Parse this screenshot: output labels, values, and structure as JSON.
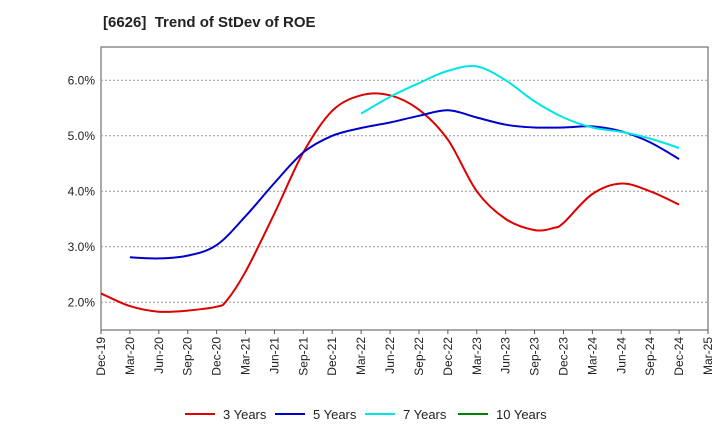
{
  "chart_data": {
    "type": "line",
    "title": "[6626]  Trend of StDev of ROE",
    "xlabel": "",
    "ylabel": "",
    "x_ticks": [
      "Dec-19",
      "Mar-20",
      "Jun-20",
      "Sep-20",
      "Dec-20",
      "Mar-21",
      "Jun-21",
      "Sep-21",
      "Dec-21",
      "Mar-22",
      "Jun-22",
      "Sep-22",
      "Dec-22",
      "Mar-23",
      "Jun-23",
      "Sep-23",
      "Dec-23",
      "Mar-24",
      "Jun-24",
      "Sep-24",
      "Dec-24",
      "Mar-25"
    ],
    "y_ticks": [
      "2.0%",
      "3.0%",
      "4.0%",
      "5.0%",
      "6.0%"
    ],
    "ylim": [
      1.5,
      6.6
    ],
    "grid": true,
    "legend_position": "bottom",
    "series": [
      {
        "name": "3 Years",
        "color": "#dd0000",
        "x": [
          "Dec-19",
          "Mar-20",
          "Jun-20",
          "Sep-20",
          "Dec-20",
          "Jan-21",
          "Mar-21",
          "Jun-21",
          "Sep-21",
          "Dec-21",
          "Mar-22",
          "Jun-22",
          "Sep-22",
          "Dec-22",
          "Mar-23",
          "Jun-23",
          "Sep-23",
          "Nov-23",
          "Dec-23",
          "Mar-24",
          "Jun-24",
          "Sep-24",
          "Dec-24"
        ],
        "values": [
          2.16,
          1.93,
          1.83,
          1.85,
          1.92,
          2.02,
          2.55,
          3.6,
          4.7,
          5.45,
          5.73,
          5.73,
          5.47,
          4.93,
          4.0,
          3.5,
          3.3,
          3.34,
          3.43,
          3.95,
          4.14,
          4.0,
          3.76
        ]
      },
      {
        "name": "5 Years",
        "color": "#0000cc",
        "x": [
          "Mar-20",
          "Jun-20",
          "Sep-20",
          "Dec-20",
          "Mar-21",
          "Jun-21",
          "Sep-21",
          "Dec-21",
          "Mar-22",
          "Jun-22",
          "Sep-22",
          "Dec-22",
          "Mar-23",
          "Jun-23",
          "Sep-23",
          "Dec-23",
          "Mar-24",
          "Jun-24",
          "Sep-24",
          "Dec-24"
        ],
        "values": [
          2.81,
          2.79,
          2.84,
          3.03,
          3.55,
          4.15,
          4.7,
          5.0,
          5.14,
          5.24,
          5.36,
          5.46,
          5.33,
          5.2,
          5.15,
          5.15,
          5.17,
          5.08,
          4.88,
          4.58
        ]
      },
      {
        "name": "7 Years",
        "color": "#00e5e5",
        "x": [
          "Mar-22",
          "Jun-22",
          "Sep-22",
          "Dec-22",
          "Mar-23",
          "Jun-23",
          "Sep-23",
          "Dec-23",
          "Mar-24",
          "Jun-24",
          "Sep-24",
          "Dec-24"
        ],
        "values": [
          5.4,
          5.7,
          5.95,
          6.17,
          6.25,
          6.0,
          5.62,
          5.33,
          5.15,
          5.07,
          4.95,
          4.78
        ]
      },
      {
        "name": "10 Years",
        "color": "#008000",
        "x": [],
        "values": []
      }
    ]
  }
}
